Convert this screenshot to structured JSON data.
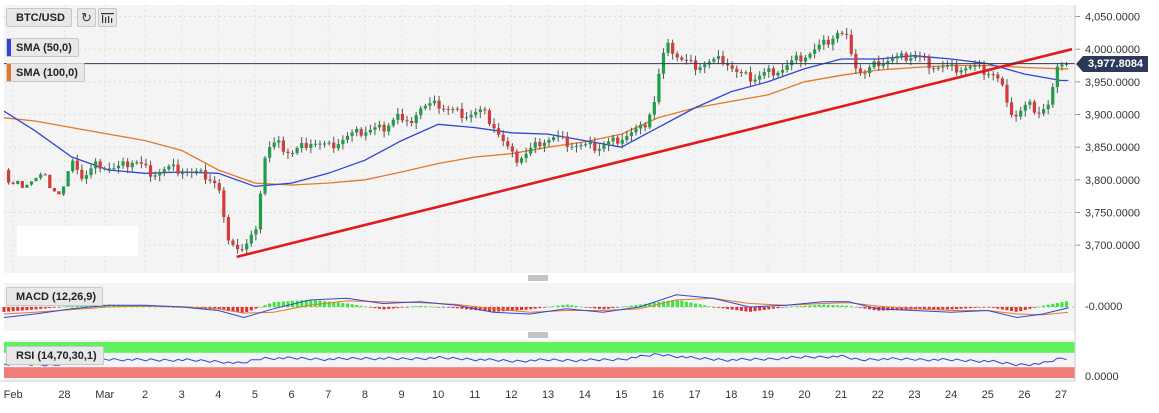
{
  "symbol_label": "BTC/USD",
  "indicators": {
    "sma50": {
      "label": "SMA (50,0)",
      "color": "#2f45d4"
    },
    "sma100": {
      "label": "SMA (100,0)",
      "color": "#e3792b"
    },
    "macd": {
      "label": "MACD (12,26,9)",
      "zero_label": "-0.0000"
    },
    "rsi": {
      "label": "RSI (14,70,30,1)",
      "zero_label": "0.0000"
    }
  },
  "toolbar": {
    "refresh_icon": "refresh-icon",
    "settings_icon": "indicator-settings-icon"
  },
  "last_price": "3,977.8084",
  "chart_data": {
    "type": "candlestick",
    "price_axis": {
      "ticks": [
        4050,
        4000,
        3950,
        3900,
        3850,
        3800,
        3750,
        3700
      ],
      "tick_labels": [
        "4,050.0000",
        "4,000.0000",
        "3,950.0000",
        "3,900.0000",
        "3,850.0000",
        "3,800.0000",
        "3,750.0000",
        "3,700.0000"
      ],
      "range": [
        3665,
        4060
      ]
    },
    "time_axis": {
      "range_days": [
        -1.85,
        27.3
      ],
      "ticks": [
        {
          "day": -1.6,
          "label": "Feb"
        },
        {
          "day": -0.2,
          "label": "28"
        },
        {
          "day": 0.9,
          "label": "Mar"
        },
        {
          "day": 2,
          "label": "2"
        },
        {
          "day": 3,
          "label": "3"
        },
        {
          "day": 4,
          "label": "4"
        },
        {
          "day": 5,
          "label": "5"
        },
        {
          "day": 6,
          "label": "6"
        },
        {
          "day": 7,
          "label": "7"
        },
        {
          "day": 8,
          "label": "8"
        },
        {
          "day": 9,
          "label": "9"
        },
        {
          "day": 10,
          "label": "10"
        },
        {
          "day": 11,
          "label": "11"
        },
        {
          "day": 12,
          "label": "12"
        },
        {
          "day": 13,
          "label": "13"
        },
        {
          "day": 14,
          "label": "14"
        },
        {
          "day": 15,
          "label": "15"
        },
        {
          "day": 16,
          "label": "16"
        },
        {
          "day": 17,
          "label": "17"
        },
        {
          "day": 18,
          "label": "18"
        },
        {
          "day": 19,
          "label": "19"
        },
        {
          "day": 20,
          "label": "20"
        },
        {
          "day": 21,
          "label": "21"
        },
        {
          "day": 22,
          "label": "22"
        },
        {
          "day": 23,
          "label": "23"
        },
        {
          "day": 24,
          "label": "24"
        },
        {
          "day": 25,
          "label": "25"
        },
        {
          "day": 26,
          "label": "26"
        },
        {
          "day": 27,
          "label": "27"
        }
      ]
    },
    "closes": [
      [
        -1.85,
        3815
      ],
      [
        -1.6,
        3805
      ],
      [
        -1.2,
        3812
      ],
      [
        -0.8,
        3820
      ],
      [
        -0.3,
        3790
      ],
      [
        0,
        3840
      ],
      [
        0.3,
        3800
      ],
      [
        0.7,
        3825
      ],
      [
        1.2,
        3815
      ],
      [
        1.7,
        3830
      ],
      [
        2.2,
        3810
      ],
      [
        2.7,
        3818
      ],
      [
        3.2,
        3812
      ],
      [
        3.7,
        3805
      ],
      [
        4.0,
        3790
      ],
      [
        4.2,
        3720
      ],
      [
        4.4,
        3705
      ],
      [
        4.6,
        3690
      ],
      [
        4.8,
        3700
      ],
      [
        5.0,
        3720
      ],
      [
        5.3,
        3845
      ],
      [
        5.6,
        3855
      ],
      [
        6.0,
        3840
      ],
      [
        6.5,
        3860
      ],
      [
        7.0,
        3850
      ],
      [
        7.5,
        3865
      ],
      [
        8.0,
        3875
      ],
      [
        8.5,
        3880
      ],
      [
        8.9,
        3900
      ],
      [
        9.1,
        3880
      ],
      [
        9.5,
        3910
      ],
      [
        10.0,
        3915
      ],
      [
        10.4,
        3905
      ],
      [
        10.8,
        3900
      ],
      [
        11.2,
        3905
      ],
      [
        11.5,
        3885
      ],
      [
        11.8,
        3855
      ],
      [
        12.1,
        3830
      ],
      [
        12.4,
        3840
      ],
      [
        12.8,
        3860
      ],
      [
        13.2,
        3865
      ],
      [
        13.6,
        3855
      ],
      [
        14.0,
        3850
      ],
      [
        14.4,
        3850
      ],
      [
        14.8,
        3860
      ],
      [
        15.2,
        3870
      ],
      [
        15.6,
        3880
      ],
      [
        15.9,
        3920
      ],
      [
        16.1,
        3985
      ],
      [
        16.3,
        4005
      ],
      [
        16.6,
        3985
      ],
      [
        17.0,
        3975
      ],
      [
        17.4,
        3980
      ],
      [
        17.8,
        3985
      ],
      [
        18.2,
        3960
      ],
      [
        18.6,
        3955
      ],
      [
        19.0,
        3965
      ],
      [
        19.4,
        3970
      ],
      [
        19.8,
        3985
      ],
      [
        20.2,
        3995
      ],
      [
        20.6,
        4010
      ],
      [
        20.9,
        4025
      ],
      [
        21.2,
        4015
      ],
      [
        21.4,
        3975
      ],
      [
        21.6,
        3960
      ],
      [
        22.0,
        3980
      ],
      [
        22.5,
        3985
      ],
      [
        23.0,
        3990
      ],
      [
        23.5,
        3975
      ],
      [
        24.0,
        3970
      ],
      [
        24.5,
        3972
      ],
      [
        25.0,
        3965
      ],
      [
        25.2,
        3960
      ],
      [
        25.5,
        3930
      ],
      [
        25.7,
        3895
      ],
      [
        25.9,
        3905
      ],
      [
        26.1,
        3915
      ],
      [
        26.4,
        3905
      ],
      [
        26.7,
        3915
      ],
      [
        26.85,
        3960
      ],
      [
        27.05,
        3985
      ],
      [
        27.2,
        3978
      ]
    ],
    "sma50": [
      [
        -1.85,
        3905
      ],
      [
        -1,
        3875
      ],
      [
        0,
        3835
      ],
      [
        1,
        3815
      ],
      [
        2,
        3810
      ],
      [
        3,
        3812
      ],
      [
        4,
        3810
      ],
      [
        5,
        3790
      ],
      [
        6,
        3795
      ],
      [
        7,
        3810
      ],
      [
        8,
        3830
      ],
      [
        9,
        3860
      ],
      [
        10,
        3885
      ],
      [
        11,
        3880
      ],
      [
        12,
        3872
      ],
      [
        13,
        3870
      ],
      [
        14,
        3860
      ],
      [
        15,
        3850
      ],
      [
        16,
        3880
      ],
      [
        17,
        3910
      ],
      [
        18,
        3935
      ],
      [
        19,
        3950
      ],
      [
        20,
        3970
      ],
      [
        21,
        3985
      ],
      [
        22,
        3985
      ],
      [
        23,
        3990
      ],
      [
        24,
        3985
      ],
      [
        25,
        3978
      ],
      [
        26,
        3962
      ],
      [
        27,
        3952
      ],
      [
        27.2,
        3952
      ]
    ],
    "sma100": [
      [
        -1.85,
        3895
      ],
      [
        -1,
        3890
      ],
      [
        0,
        3880
      ],
      [
        1,
        3870
      ],
      [
        2,
        3860
      ],
      [
        3,
        3845
      ],
      [
        4,
        3815
      ],
      [
        5,
        3795
      ],
      [
        6,
        3792
      ],
      [
        7,
        3795
      ],
      [
        8,
        3800
      ],
      [
        9,
        3812
      ],
      [
        10,
        3825
      ],
      [
        11,
        3835
      ],
      [
        12,
        3840
      ],
      [
        13,
        3850
      ],
      [
        14,
        3858
      ],
      [
        15,
        3870
      ],
      [
        16,
        3895
      ],
      [
        17,
        3910
      ],
      [
        18,
        3920
      ],
      [
        19,
        3930
      ],
      [
        20,
        3950
      ],
      [
        21,
        3960
      ],
      [
        22,
        3968
      ],
      [
        23,
        3972
      ],
      [
        24,
        3975
      ],
      [
        25,
        3975
      ],
      [
        26,
        3972
      ],
      [
        27,
        3970
      ],
      [
        27.2,
        3970
      ]
    ],
    "trendline": {
      "start": [
        4.5,
        3682
      ],
      "end": [
        27.3,
        4000
      ],
      "color": "#e01b1b"
    },
    "macd_panel": {
      "range": [
        -1.2,
        1.2
      ],
      "macd": [
        [
          -1.85,
          -0.6
        ],
        [
          -1,
          -0.4
        ],
        [
          0,
          -0.1
        ],
        [
          1,
          0.1
        ],
        [
          2,
          0.1
        ],
        [
          3,
          0
        ],
        [
          4,
          -0.2
        ],
        [
          4.7,
          -0.6
        ],
        [
          5.5,
          -0.1
        ],
        [
          6.5,
          0.4
        ],
        [
          7.5,
          0.5
        ],
        [
          8.5,
          0.2
        ],
        [
          9.5,
          0.3
        ],
        [
          10.5,
          0.1
        ],
        [
          11.5,
          -0.3
        ],
        [
          12.5,
          -0.4
        ],
        [
          13.5,
          -0.1
        ],
        [
          14.5,
          -0.3
        ],
        [
          15.5,
          0
        ],
        [
          16.5,
          0.7
        ],
        [
          17.5,
          0.5
        ],
        [
          18.5,
          0
        ],
        [
          19.5,
          0.1
        ],
        [
          20.5,
          0.3
        ],
        [
          21.2,
          0.3
        ],
        [
          22,
          -0.1
        ],
        [
          23,
          -0.2
        ],
        [
          24,
          -0.3
        ],
        [
          25,
          -0.2
        ],
        [
          25.8,
          -0.6
        ],
        [
          26.5,
          -0.4
        ],
        [
          27.2,
          -0.05
        ]
      ],
      "signal": [
        [
          -1.85,
          -0.4
        ],
        [
          -1,
          -0.3
        ],
        [
          0,
          -0.15
        ],
        [
          1,
          0
        ],
        [
          2,
          0.05
        ],
        [
          3,
          0.02
        ],
        [
          4,
          -0.1
        ],
        [
          4.7,
          -0.35
        ],
        [
          5.5,
          -0.3
        ],
        [
          6.5,
          0.1
        ],
        [
          7.5,
          0.35
        ],
        [
          8.5,
          0.3
        ],
        [
          9.5,
          0.25
        ],
        [
          10.5,
          0.15
        ],
        [
          11.5,
          -0.1
        ],
        [
          12.5,
          -0.3
        ],
        [
          13.5,
          -0.2
        ],
        [
          14.5,
          -0.2
        ],
        [
          15.5,
          -0.1
        ],
        [
          16.5,
          0.4
        ],
        [
          17.5,
          0.5
        ],
        [
          18.5,
          0.2
        ],
        [
          19.5,
          0.1
        ],
        [
          20.5,
          0.2
        ],
        [
          21.2,
          0.25
        ],
        [
          22,
          0.05
        ],
        [
          23,
          -0.1
        ],
        [
          24,
          -0.2
        ],
        [
          25,
          -0.2
        ],
        [
          25.8,
          -0.4
        ],
        [
          26.5,
          -0.45
        ],
        [
          27.2,
          -0.3
        ]
      ]
    },
    "rsi_panel": {
      "range": [
        0,
        100
      ],
      "upper": 70,
      "lower": 30,
      "values": [
        [
          -1.85,
          48
        ],
        [
          -0.5,
          44
        ],
        [
          0,
          55
        ],
        [
          1,
          52
        ],
        [
          2,
          50
        ],
        [
          3,
          50
        ],
        [
          4,
          46
        ],
        [
          4.6,
          40
        ],
        [
          5.2,
          55
        ],
        [
          6,
          55
        ],
        [
          7,
          52
        ],
        [
          8,
          55
        ],
        [
          9,
          53
        ],
        [
          10,
          56
        ],
        [
          11,
          52
        ],
        [
          12,
          47
        ],
        [
          13,
          50
        ],
        [
          14,
          49
        ],
        [
          15,
          52
        ],
        [
          16,
          66
        ],
        [
          17,
          55
        ],
        [
          18,
          50
        ],
        [
          19,
          53
        ],
        [
          20,
          58
        ],
        [
          21,
          60
        ],
        [
          21.5,
          50
        ],
        [
          22,
          53
        ],
        [
          23,
          52
        ],
        [
          24,
          50
        ],
        [
          25,
          47
        ],
        [
          25.8,
          37
        ],
        [
          26.5,
          40
        ],
        [
          27,
          55
        ],
        [
          27.2,
          54
        ]
      ]
    }
  }
}
